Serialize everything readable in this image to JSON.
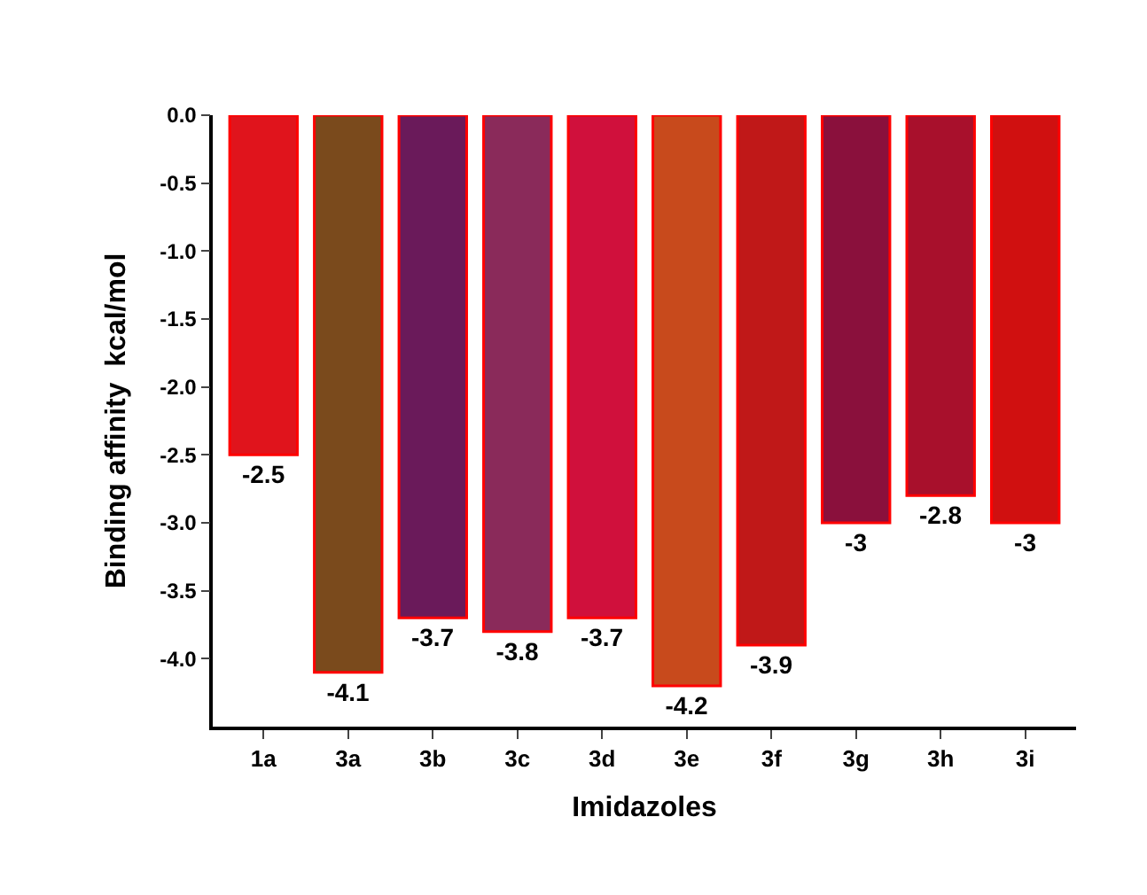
{
  "chart_data": {
    "type": "bar",
    "xlabel": "Imidazoles",
    "ylabel": "Binding affinity  kcal/mol",
    "categories": [
      "1a",
      "3a",
      "3b",
      "3c",
      "3d",
      "3e",
      "3f",
      "3g",
      "3h",
      "3i"
    ],
    "values": [
      -2.5,
      -4.1,
      -3.7,
      -3.8,
      -3.7,
      -4.2,
      -3.9,
      -3,
      -2.8,
      -3
    ],
    "colors": [
      "#e0141c",
      "#7a4a1c",
      "#6a1a5a",
      "#8a2a5a",
      "#d0103c",
      "#c84a1c",
      "#c01818",
      "#8a103c",
      "#a8102c",
      "#d01010"
    ],
    "ylim": [
      -4.5,
      0
    ],
    "yticks": [
      {
        "value": 0,
        "label": "0.0"
      },
      {
        "value": -0.5,
        "label": "-0.5"
      },
      {
        "value": -1,
        "label": "-1.0"
      },
      {
        "value": -1.5,
        "label": "-1.5"
      },
      {
        "value": -2,
        "label": "-2.0"
      },
      {
        "value": -2.5,
        "label": "-2.5"
      },
      {
        "value": -3,
        "label": "-3.0"
      },
      {
        "value": -3.5,
        "label": "-3.5"
      },
      {
        "value": -4,
        "label": "-4.0"
      }
    ],
    "data_labels": true
  }
}
